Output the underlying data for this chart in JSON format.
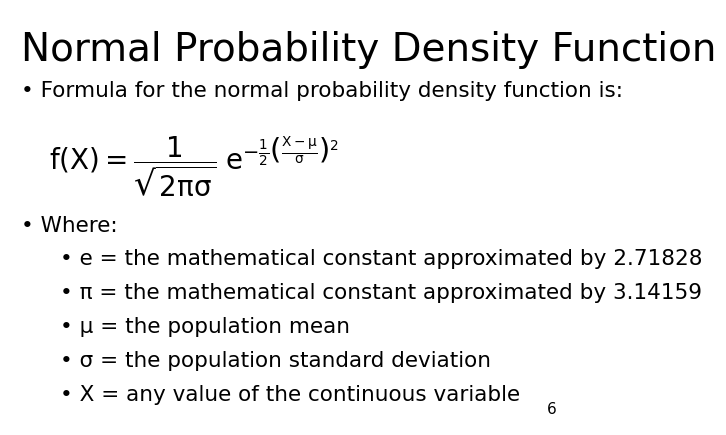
{
  "title": "Normal Probability Density Function",
  "bullet1": "Formula for the normal probability density function is:",
  "bullet2": "Where:",
  "sub_bullets": [
    "e = the mathematical constant approximated by 2.71828",
    "π = the mathematical constant approximated by 3.14159",
    "μ = the population mean",
    "σ = the population standard deviation",
    "X = any value of the continuous variable"
  ],
  "page_number": "6",
  "bg_color": "#ffffff",
  "text_color": "#000000",
  "title_fontsize": 28,
  "body_fontsize": 15.5,
  "sub_fontsize": 15.5
}
